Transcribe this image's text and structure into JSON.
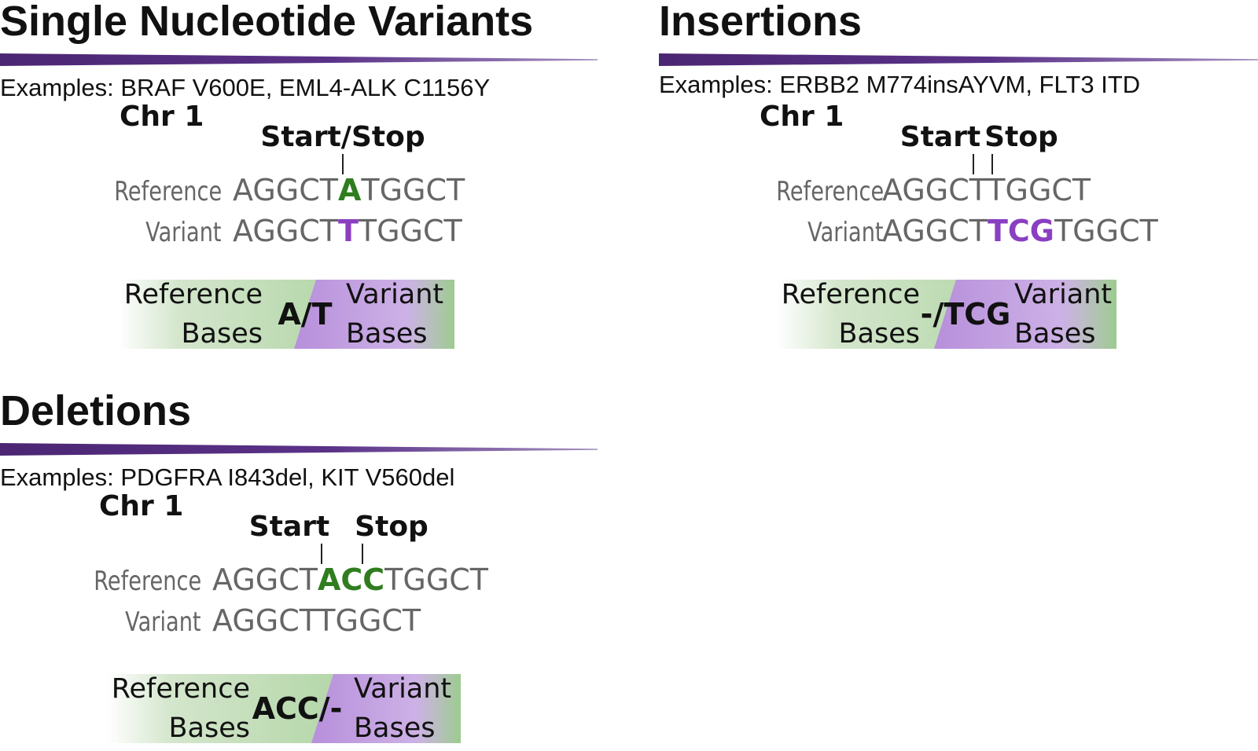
{
  "colors": {
    "rule_purple": "#4b2673",
    "reference_green": "#2f7d1f",
    "variant_purple": "#8a3fc1",
    "sequence_gray": "#666666"
  },
  "panels": {
    "snv": {
      "title": "Single Nucleotide Variants",
      "examples": "Examples: BRAF V600E, EML4-ALK C1156Y",
      "chr": "Chr 1",
      "marker": "Start/Stop",
      "reference_label": "Reference",
      "variant_label": "Variant",
      "ref_seq": [
        "AGGCT",
        "A",
        "TGGCT"
      ],
      "var_seq": [
        "AGGCT",
        "T",
        "TGGCT"
      ],
      "ref_bases_line1": "Reference",
      "ref_bases_line2": "Bases",
      "allele": "A/T",
      "var_bases_line1": "Variant",
      "var_bases_line2": "Bases"
    },
    "insertions": {
      "title": "Insertions",
      "examples": "Examples: ERBB2 M774insAYVM, FLT3 ITD",
      "chr": "Chr 1",
      "start": "Start",
      "stop": "Stop",
      "reference_label": "Reference",
      "variant_label": "Variant",
      "ref_seq": "AGGCTTGGCT",
      "var_seq": [
        "AGGCT",
        "TCG",
        "TGGCT"
      ],
      "ref_bases_line1": "Reference",
      "ref_bases_line2": "Bases",
      "allele": "-/TCG",
      "var_bases_line1": "Variant",
      "var_bases_line2": "Bases"
    },
    "deletions": {
      "title": "Deletions",
      "examples": "Examples: PDGFRA I843del, KIT V560del",
      "chr": "Chr 1",
      "start": "Start",
      "stop": "Stop",
      "reference_label": "Reference",
      "variant_label": "Variant",
      "ref_seq": [
        "AGGCT",
        "ACC",
        "TGGCT"
      ],
      "var_seq": "AGGCTTGGCT",
      "ref_bases_line1": "Reference",
      "ref_bases_line2": "Bases",
      "allele": "ACC/-",
      "var_bases_line1": "Variant",
      "var_bases_line2": "Bases"
    }
  }
}
